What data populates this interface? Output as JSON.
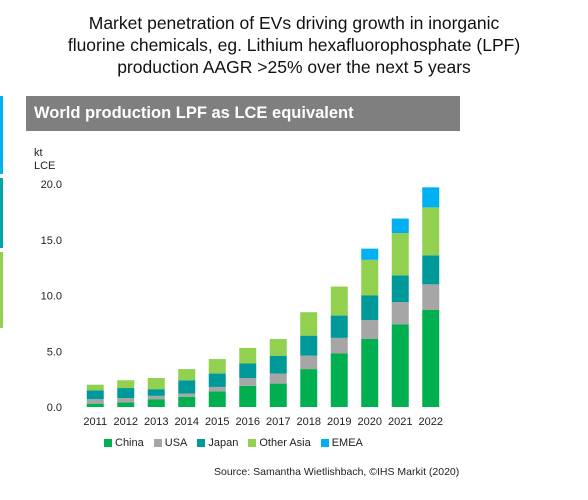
{
  "headline": [
    "Market penetration of EVs driving growth in inorganic",
    "fluorine chemicals, eg. Lithium hexafluorophosphate (LPF)",
    "production AAGR >25% over the next 5 years"
  ],
  "source": "Source: Samantha Wietlishbach, ©IHS Markit (2020)",
  "accent_colors": [
    "#00b0f0",
    "#00a6a6",
    "#92d050"
  ],
  "chart_data": {
    "type": "bar",
    "stacked": true,
    "title": "World production LPF as LCE equivalent",
    "ylabel": [
      "kt",
      "LCE"
    ],
    "ylim": [
      0,
      20
    ],
    "yticks": [
      "0.0",
      "5.0",
      "10.0",
      "15.0",
      "20.0"
    ],
    "ytick_values": [
      0,
      5,
      10,
      15,
      20
    ],
    "grid": false,
    "legend": "bottom",
    "categories": [
      "2011",
      "2012",
      "2013",
      "2014",
      "2015",
      "2016",
      "2017",
      "2018",
      "2019",
      "2020",
      "2021",
      "2022"
    ],
    "series": [
      {
        "name": "China",
        "color": "#00b050",
        "values": [
          0.3,
          0.4,
          0.7,
          0.9,
          1.4,
          1.9,
          2.1,
          3.4,
          4.8,
          6.1,
          7.4,
          8.7
        ]
      },
      {
        "name": "USA",
        "color": "#a6a6a6",
        "values": [
          0.4,
          0.4,
          0.3,
          0.3,
          0.4,
          0.7,
          0.9,
          1.2,
          1.4,
          1.7,
          2.0,
          2.3
        ]
      },
      {
        "name": "Japan",
        "color": "#009999",
        "values": [
          0.8,
          0.9,
          0.6,
          1.2,
          1.2,
          1.3,
          1.6,
          1.8,
          2.0,
          2.2,
          2.4,
          2.6
        ]
      },
      {
        "name": "Other Asia",
        "color": "#92d050",
        "values": [
          0.5,
          0.7,
          1.0,
          1.0,
          1.3,
          1.4,
          1.5,
          2.1,
          2.6,
          3.2,
          3.8,
          4.3
        ]
      },
      {
        "name": "EMEA",
        "color": "#00b0f0",
        "values": [
          0,
          0,
          0,
          0,
          0,
          0,
          0,
          0,
          0,
          1.0,
          1.3,
          1.8
        ]
      }
    ]
  }
}
